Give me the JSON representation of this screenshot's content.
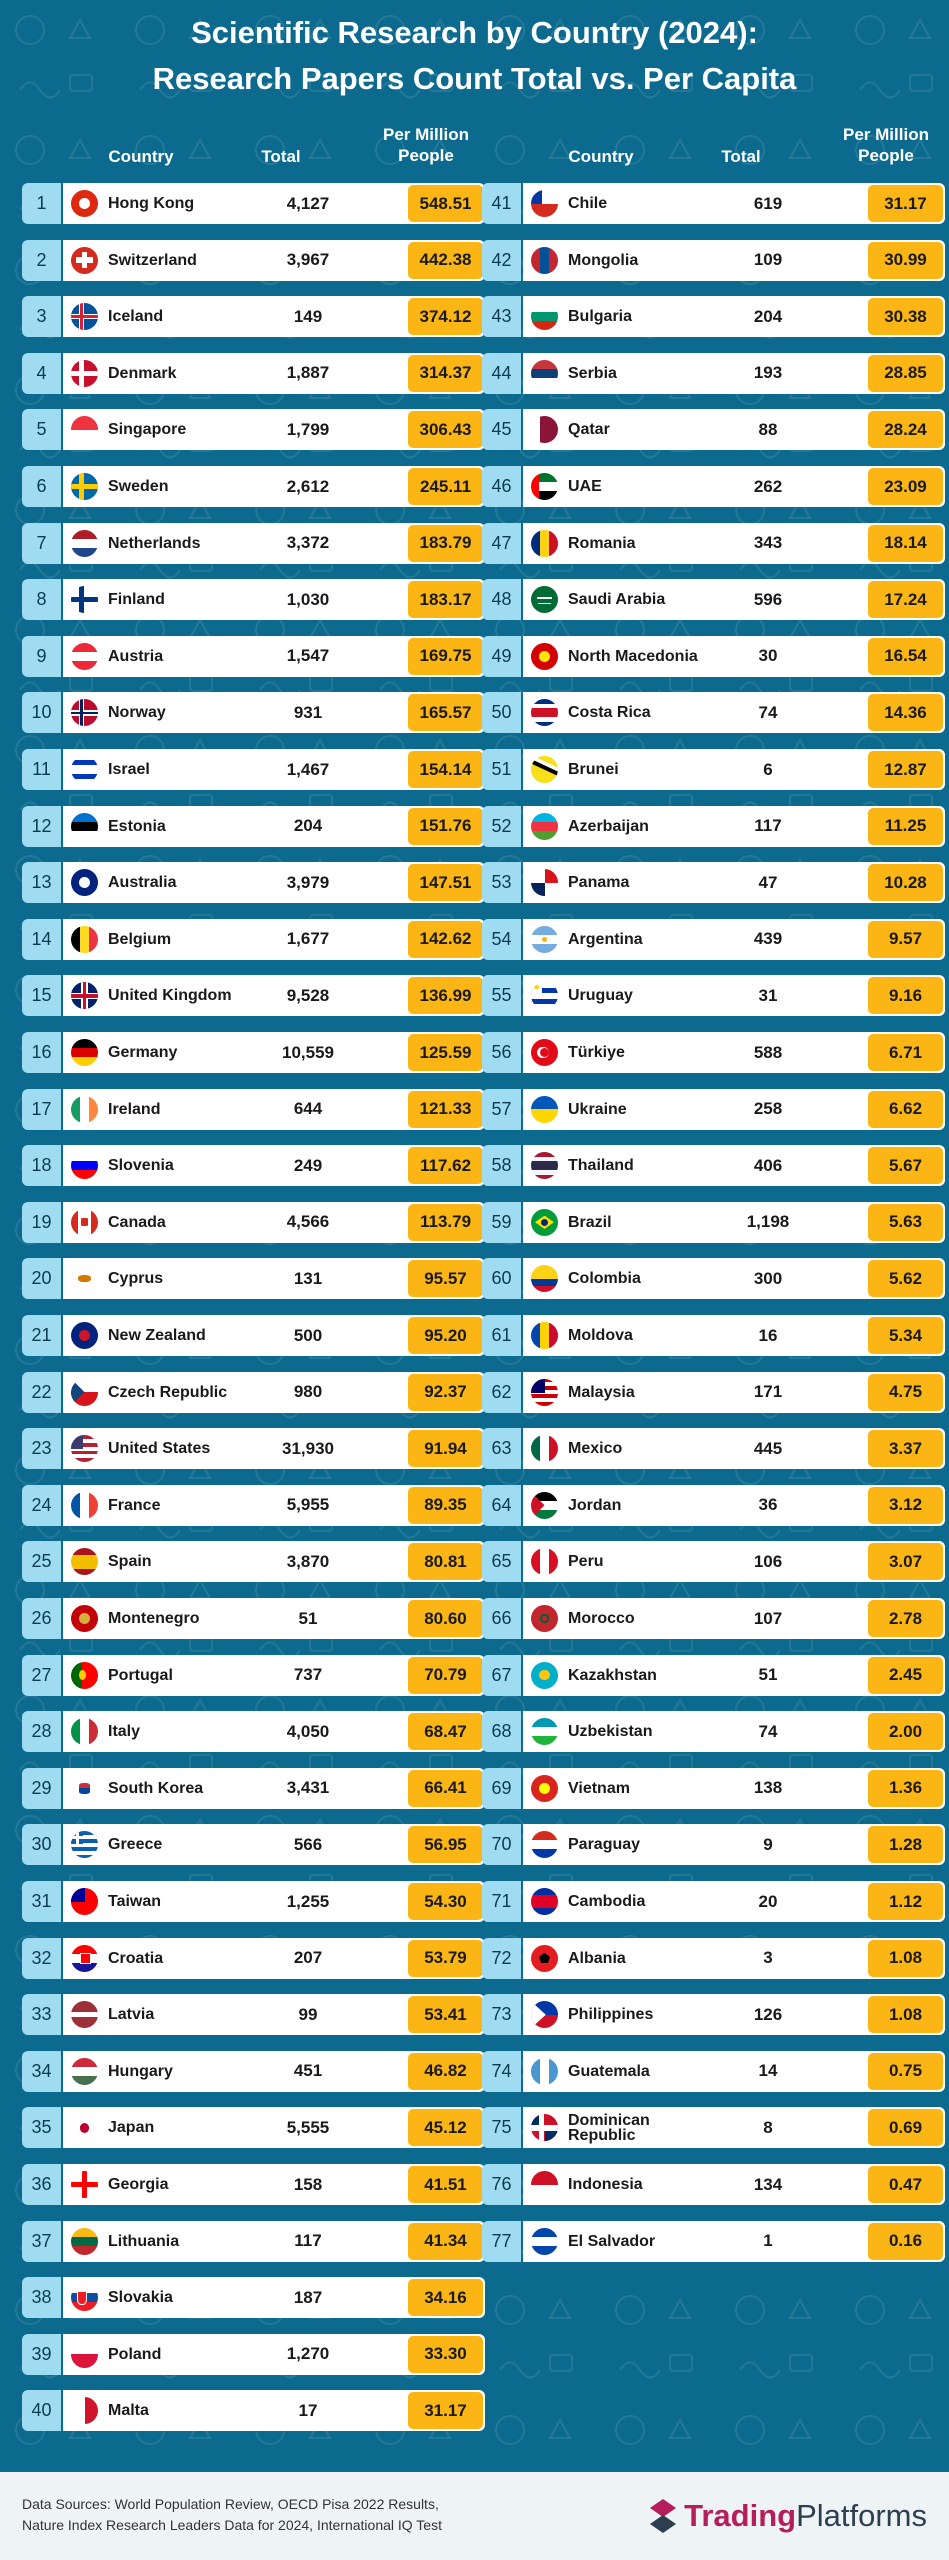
{
  "title_lines": [
    "Scientific Research by Country (2024):",
    "Research Papers Count Total vs. Per Capita"
  ],
  "headers": {
    "country": "Country",
    "total": "Total",
    "per_million_1": "Per Million",
    "per_million_2": "People"
  },
  "colors": {
    "background": "#0b6a8d",
    "rank": "#9fdcf2",
    "per_capita": "#fbb616",
    "row": "#ffffff",
    "brand": "#b51e5b"
  },
  "chart_data": {
    "type": "table",
    "title": "Scientific Research by Country (2024): Research Papers Count Total vs. Per Capita",
    "columns": [
      "Country",
      "Total",
      "Per Million People"
    ],
    "rows": [
      {
        "rank": "1",
        "country": "Hong Kong",
        "total": "4,127",
        "per": "548.51",
        "flag": "hk"
      },
      {
        "rank": "2",
        "country": "Switzerland",
        "total": "3,967",
        "per": "442.38",
        "flag": "ch"
      },
      {
        "rank": "3",
        "country": "Iceland",
        "total": "149",
        "per": "374.12",
        "flag": "is"
      },
      {
        "rank": "4",
        "country": "Denmark",
        "total": "1,887",
        "per": "314.37",
        "flag": "dk"
      },
      {
        "rank": "5",
        "country": "Singapore",
        "total": "1,799",
        "per": "306.43",
        "flag": "sg"
      },
      {
        "rank": "6",
        "country": "Sweden",
        "total": "2,612",
        "per": "245.11",
        "flag": "se"
      },
      {
        "rank": "7",
        "country": "Netherlands",
        "total": "3,372",
        "per": "183.79",
        "flag": "nl"
      },
      {
        "rank": "8",
        "country": "Finland",
        "total": "1,030",
        "per": "183.17",
        "flag": "fi"
      },
      {
        "rank": "9",
        "country": "Austria",
        "total": "1,547",
        "per": "169.75",
        "flag": "at"
      },
      {
        "rank": "10",
        "country": "Norway",
        "total": "931",
        "per": "165.57",
        "flag": "no"
      },
      {
        "rank": "11",
        "country": "Israel",
        "total": "1,467",
        "per": "154.14",
        "flag": "il"
      },
      {
        "rank": "12",
        "country": "Estonia",
        "total": "204",
        "per": "151.76",
        "flag": "ee"
      },
      {
        "rank": "13",
        "country": "Australia",
        "total": "3,979",
        "per": "147.51",
        "flag": "au"
      },
      {
        "rank": "14",
        "country": "Belgium",
        "total": "1,677",
        "per": "142.62",
        "flag": "be"
      },
      {
        "rank": "15",
        "country": "United Kingdom",
        "total": "9,528",
        "per": "136.99",
        "flag": "gb"
      },
      {
        "rank": "16",
        "country": "Germany",
        "total": "10,559",
        "per": "125.59",
        "flag": "de"
      },
      {
        "rank": "17",
        "country": "Ireland",
        "total": "644",
        "per": "121.33",
        "flag": "ie"
      },
      {
        "rank": "18",
        "country": "Slovenia",
        "total": "249",
        "per": "117.62",
        "flag": "si"
      },
      {
        "rank": "19",
        "country": "Canada",
        "total": "4,566",
        "per": "113.79",
        "flag": "ca"
      },
      {
        "rank": "20",
        "country": "Cyprus",
        "total": "131",
        "per": "95.57",
        "flag": "cy"
      },
      {
        "rank": "21",
        "country": "New Zealand",
        "total": "500",
        "per": "95.20",
        "flag": "nz"
      },
      {
        "rank": "22",
        "country": "Czech Republic",
        "total": "980",
        "per": "92.37",
        "flag": "cz"
      },
      {
        "rank": "23",
        "country": "United States",
        "total": "31,930",
        "per": "91.94",
        "flag": "us"
      },
      {
        "rank": "24",
        "country": "France",
        "total": "5,955",
        "per": "89.35",
        "flag": "fr"
      },
      {
        "rank": "25",
        "country": "Spain",
        "total": "3,870",
        "per": "80.81",
        "flag": "es"
      },
      {
        "rank": "26",
        "country": "Montenegro",
        "total": "51",
        "per": "80.60",
        "flag": "me"
      },
      {
        "rank": "27",
        "country": "Portugal",
        "total": "737",
        "per": "70.79",
        "flag": "pt"
      },
      {
        "rank": "28",
        "country": "Italy",
        "total": "4,050",
        "per": "68.47",
        "flag": "it"
      },
      {
        "rank": "29",
        "country": "South Korea",
        "total": "3,431",
        "per": "66.41",
        "flag": "kr"
      },
      {
        "rank": "30",
        "country": "Greece",
        "total": "566",
        "per": "56.95",
        "flag": "gr"
      },
      {
        "rank": "31",
        "country": "Taiwan",
        "total": "1,255",
        "per": "54.30",
        "flag": "tw"
      },
      {
        "rank": "32",
        "country": "Croatia",
        "total": "207",
        "per": "53.79",
        "flag": "hr"
      },
      {
        "rank": "33",
        "country": "Latvia",
        "total": "99",
        "per": "53.41",
        "flag": "lv"
      },
      {
        "rank": "34",
        "country": "Hungary",
        "total": "451",
        "per": "46.82",
        "flag": "hu"
      },
      {
        "rank": "35",
        "country": "Japan",
        "total": "5,555",
        "per": "45.12",
        "flag": "jp"
      },
      {
        "rank": "36",
        "country": "Georgia",
        "total": "158",
        "per": "41.51",
        "flag": "ge"
      },
      {
        "rank": "37",
        "country": "Lithuania",
        "total": "117",
        "per": "41.34",
        "flag": "lt"
      },
      {
        "rank": "38",
        "country": "Slovakia",
        "total": "187",
        "per": "34.16",
        "flag": "sk"
      },
      {
        "rank": "39",
        "country": "Poland",
        "total": "1,270",
        "per": "33.30",
        "flag": "pl"
      },
      {
        "rank": "40",
        "country": "Malta",
        "total": "17",
        "per": "31.17",
        "flag": "mt"
      },
      {
        "rank": "41",
        "country": "Chile",
        "total": "619",
        "per": "31.17",
        "flag": "cl"
      },
      {
        "rank": "42",
        "country": "Mongolia",
        "total": "109",
        "per": "30.99",
        "flag": "mn"
      },
      {
        "rank": "43",
        "country": "Bulgaria",
        "total": "204",
        "per": "30.38",
        "flag": "bg"
      },
      {
        "rank": "44",
        "country": "Serbia",
        "total": "193",
        "per": "28.85",
        "flag": "rs"
      },
      {
        "rank": "45",
        "country": "Qatar",
        "total": "88",
        "per": "28.24",
        "flag": "qa"
      },
      {
        "rank": "46",
        "country": "UAE",
        "total": "262",
        "per": "23.09",
        "flag": "ae"
      },
      {
        "rank": "47",
        "country": "Romania",
        "total": "343",
        "per": "18.14",
        "flag": "ro"
      },
      {
        "rank": "48",
        "country": "Saudi Arabia",
        "total": "596",
        "per": "17.24",
        "flag": "sa"
      },
      {
        "rank": "49",
        "country": "North Macedonia",
        "total": "30",
        "per": "16.54",
        "flag": "mk"
      },
      {
        "rank": "50",
        "country": "Costa Rica",
        "total": "74",
        "per": "14.36",
        "flag": "cr"
      },
      {
        "rank": "51",
        "country": "Brunei",
        "total": "6",
        "per": "12.87",
        "flag": "bn"
      },
      {
        "rank": "52",
        "country": "Azerbaijan",
        "total": "117",
        "per": "11.25",
        "flag": "az"
      },
      {
        "rank": "53",
        "country": "Panama",
        "total": "47",
        "per": "10.28",
        "flag": "pa"
      },
      {
        "rank": "54",
        "country": "Argentina",
        "total": "439",
        "per": "9.57",
        "flag": "ar"
      },
      {
        "rank": "55",
        "country": "Uruguay",
        "total": "31",
        "per": "9.16",
        "flag": "uy"
      },
      {
        "rank": "56",
        "country": "Türkiye",
        "total": "588",
        "per": "6.71",
        "flag": "tr"
      },
      {
        "rank": "57",
        "country": "Ukraine",
        "total": "258",
        "per": "6.62",
        "flag": "ua"
      },
      {
        "rank": "58",
        "country": "Thailand",
        "total": "406",
        "per": "5.67",
        "flag": "th"
      },
      {
        "rank": "59",
        "country": "Brazil",
        "total": "1,198",
        "per": "5.63",
        "flag": "br"
      },
      {
        "rank": "60",
        "country": "Colombia",
        "total": "300",
        "per": "5.62",
        "flag": "co"
      },
      {
        "rank": "61",
        "country": "Moldova",
        "total": "16",
        "per": "5.34",
        "flag": "md"
      },
      {
        "rank": "62",
        "country": "Malaysia",
        "total": "171",
        "per": "4.75",
        "flag": "my"
      },
      {
        "rank": "63",
        "country": "Mexico",
        "total": "445",
        "per": "3.37",
        "flag": "mx"
      },
      {
        "rank": "64",
        "country": "Jordan",
        "total": "36",
        "per": "3.12",
        "flag": "jo"
      },
      {
        "rank": "65",
        "country": "Peru",
        "total": "106",
        "per": "3.07",
        "flag": "pe"
      },
      {
        "rank": "66",
        "country": "Morocco",
        "total": "107",
        "per": "2.78",
        "flag": "ma"
      },
      {
        "rank": "67",
        "country": "Kazakhstan",
        "total": "51",
        "per": "2.45",
        "flag": "kz"
      },
      {
        "rank": "68",
        "country": "Uzbekistan",
        "total": "74",
        "per": "2.00",
        "flag": "uz"
      },
      {
        "rank": "69",
        "country": "Vietnam",
        "total": "138",
        "per": "1.36",
        "flag": "vn"
      },
      {
        "rank": "70",
        "country": "Paraguay",
        "total": "9",
        "per": "1.28",
        "flag": "py"
      },
      {
        "rank": "71",
        "country": "Cambodia",
        "total": "20",
        "per": "1.12",
        "flag": "kh"
      },
      {
        "rank": "72",
        "country": "Albania",
        "total": "3",
        "per": "1.08",
        "flag": "al"
      },
      {
        "rank": "73",
        "country": "Philippines",
        "total": "126",
        "per": "1.08",
        "flag": "ph"
      },
      {
        "rank": "74",
        "country": "Guatemala",
        "total": "14",
        "per": "0.75",
        "flag": "gt"
      },
      {
        "rank": "75",
        "country": "Dominican Republic",
        "total": "8",
        "per": "0.69",
        "flag": "do"
      },
      {
        "rank": "76",
        "country": "Indonesia",
        "total": "134",
        "per": "0.47",
        "flag": "id"
      },
      {
        "rank": "77",
        "country": "El Salvador",
        "total": "1",
        "per": "0.16",
        "flag": "sv"
      }
    ]
  },
  "footer": {
    "sources_line1": "Data Sources: World Population Review, OECD Pisa 2022 Results,",
    "sources_line2": "Nature Index Research Leaders Data for 2024, International IQ Test",
    "brand_part1": "Trading",
    "brand_part2": "Platforms"
  }
}
